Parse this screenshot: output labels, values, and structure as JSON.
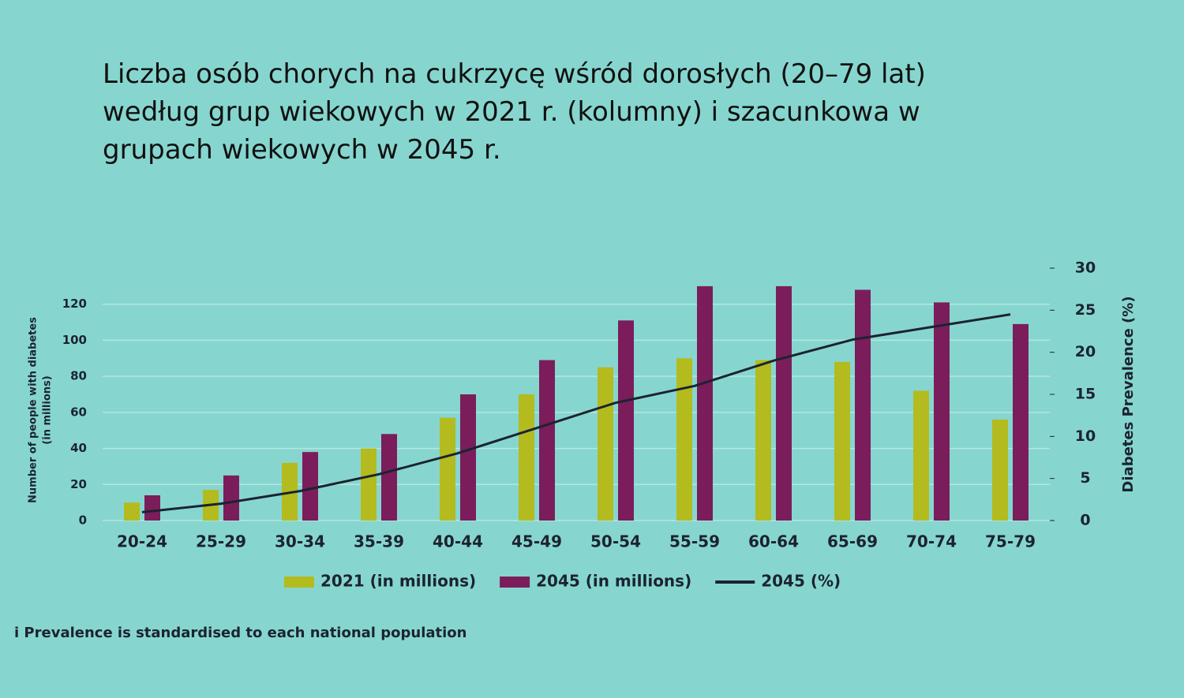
{
  "chart_data": {
    "type": "bar-line",
    "title": "Liczba osób chorych na cukrzycę wśród dorosłych (20–79 lat) według grup wiekowych w 2021 r. (kolumny) i szacunkowa w grupach wiekowych w 2045 r.",
    "ylabel": "Number of people with diabetes",
    "ylabel_sub": "(in millions)",
    "y2label": "Diabetes Prevalence (%)",
    "footnote": "i Prevalence is standardised to each national population",
    "categories": [
      "20-24",
      "25-29",
      "30-34",
      "35-39",
      "40-44",
      "45-49",
      "50-54",
      "55-59",
      "60-64",
      "65-69",
      "70-74",
      "75-79"
    ],
    "series": [
      {
        "name": "2021 (in millions)",
        "color": "#b3bb1f",
        "values": [
          10,
          17,
          32,
          40,
          57,
          70,
          85,
          90,
          89,
          88,
          72,
          56
        ]
      },
      {
        "name": "2045 (in millions)",
        "color": "#7b1d5b",
        "values": [
          14,
          25,
          38,
          48,
          70,
          89,
          111,
          130,
          130,
          128,
          121,
          109
        ]
      },
      {
        "name": "2045 (%)",
        "color": "#1c2330",
        "axis": "y2",
        "values": [
          1,
          2,
          3.5,
          5.5,
          8,
          11,
          14,
          16,
          19,
          21.5,
          23,
          24.5
        ]
      }
    ],
    "ylim": [
      0,
      140
    ],
    "yticks": [
      0,
      20,
      40,
      60,
      80,
      100,
      120
    ],
    "y2lim": [
      0,
      30
    ],
    "y2ticks": [
      0,
      5,
      10,
      15,
      20,
      25,
      30
    ],
    "grid": true
  }
}
